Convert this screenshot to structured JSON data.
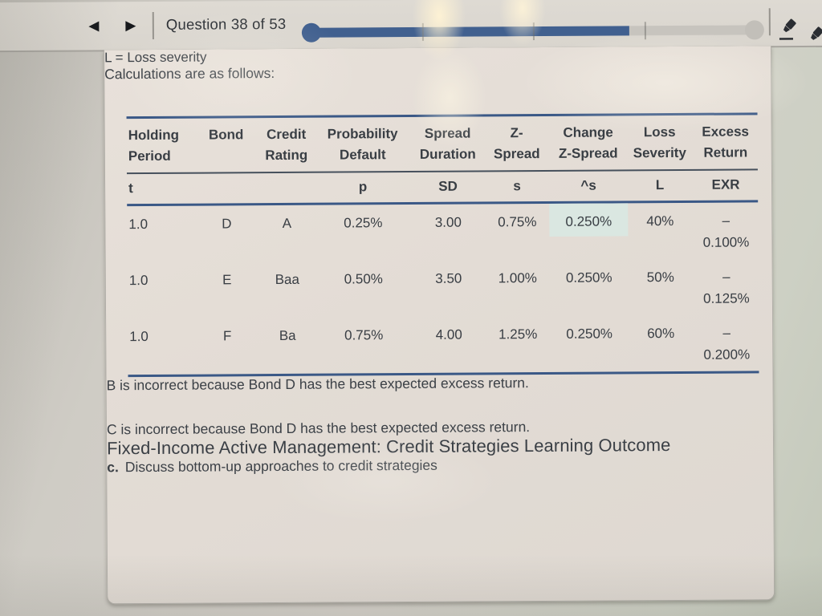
{
  "colors": {
    "accent_blue": "#41608f",
    "table_border_navy": "#3a5886",
    "cell_highlight": "#dae7e1"
  },
  "toolbar": {
    "prev_icon": "◀",
    "next_icon": "▶",
    "question_counter": "Question 38 of 53",
    "progress": {
      "current": 38,
      "total": 53
    },
    "icons": [
      "highlighter-icon",
      "highlighter-edge-icon"
    ]
  },
  "content": {
    "formula_legend": "L = Loss severity",
    "intro": "Calculations are as follows:",
    "table": {
      "header_top": [
        "Holding",
        "",
        "Credit",
        "Probability",
        "Spread",
        "Z-",
        "Change",
        "Loss",
        "Excess"
      ],
      "header_bottom": [
        "Period",
        "Bond",
        "Rating",
        "Default",
        "Duration",
        "Spread",
        "Z-Spread",
        "Severity",
        "Return"
      ],
      "symbols": [
        "t",
        "",
        "",
        "p",
        "SD",
        "s",
        "^s",
        "L",
        "EXR"
      ],
      "rows": [
        {
          "t": "1.0",
          "bond": "D",
          "rating": "A",
          "p": "0.25%",
          "sd": "3.00",
          "s": "0.75%",
          "ds": "0.250%",
          "l": "40%",
          "exr1": "–",
          "exr2": "0.100%"
        },
        {
          "t": "1.0",
          "bond": "E",
          "rating": "Baa",
          "p": "0.50%",
          "sd": "3.50",
          "s": "1.00%",
          "ds": "0.250%",
          "l": "50%",
          "exr1": "–",
          "exr2": "0.125%"
        },
        {
          "t": "1.0",
          "bond": "F",
          "rating": "Ba",
          "p": "0.75%",
          "sd": "4.00",
          "s": "1.25%",
          "ds": "0.250%",
          "l": "60%",
          "exr1": "–",
          "exr2": "0.200%"
        }
      ]
    },
    "explanation_b": "B is incorrect because Bond D has the best expected excess return.",
    "explanation_c": "C is incorrect because Bond D has the best expected excess return.",
    "outcome_title": "Fixed-Income Active Management: Credit Strategies Learning Outcome",
    "outcome_item": {
      "letter": "c.",
      "text": "Discuss bottom-up approaches to credit strategies"
    }
  }
}
